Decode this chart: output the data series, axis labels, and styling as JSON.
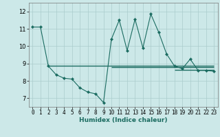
{
  "xlabel": "Humidex (Indice chaleur)",
  "bg_color": "#cce8e8",
  "grid_color": "#aacccc",
  "line_color": "#1a6b60",
  "xlim": [
    -0.5,
    23.5
  ],
  "ylim": [
    6.5,
    12.5
  ],
  "yticks": [
    7,
    8,
    9,
    10,
    11,
    12
  ],
  "xticks": [
    0,
    1,
    2,
    3,
    4,
    5,
    6,
    7,
    8,
    9,
    10,
    11,
    12,
    13,
    14,
    15,
    16,
    17,
    18,
    19,
    20,
    21,
    22,
    23
  ],
  "series": [
    [
      0,
      11.1
    ],
    [
      1,
      11.1
    ],
    [
      2,
      8.85
    ],
    [
      3,
      8.35
    ],
    [
      4,
      8.15
    ],
    [
      5,
      8.1
    ],
    [
      6,
      7.6
    ],
    [
      7,
      7.35
    ],
    [
      8,
      7.25
    ],
    [
      9,
      6.75
    ],
    [
      10,
      10.4
    ],
    [
      11,
      11.5
    ],
    [
      12,
      9.75
    ],
    [
      13,
      11.55
    ],
    [
      14,
      9.9
    ],
    [
      15,
      11.85
    ],
    [
      16,
      10.8
    ],
    [
      17,
      9.55
    ],
    [
      18,
      8.85
    ],
    [
      19,
      8.7
    ],
    [
      20,
      9.25
    ],
    [
      21,
      8.6
    ],
    [
      22,
      8.6
    ],
    [
      23,
      8.55
    ]
  ],
  "hline1": {
    "y": 8.85,
    "xstart": 2,
    "xend": 23
  },
  "hline2": {
    "y": 8.78,
    "xstart": 10,
    "xend": 23
  },
  "hline3": {
    "y": 8.65,
    "xstart": 18,
    "xend": 23
  },
  "xlabel_fontsize": 6.5,
  "tick_fontsize": 5.5,
  "marker_size": 2.2,
  "line_width": 0.8
}
